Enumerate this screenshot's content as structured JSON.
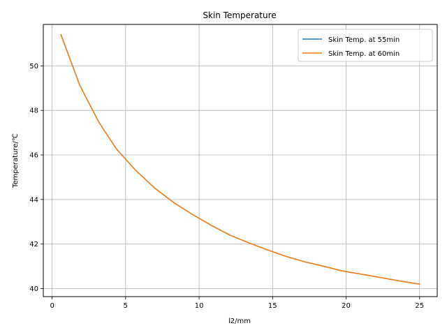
{
  "chart_data": {
    "type": "line",
    "title": "Skin Temperature",
    "xlabel": "l2/mm",
    "ylabel": "Temperature/℃",
    "xlim": [
      -0.6,
      26.2
    ],
    "ylim": [
      39.64,
      51.86
    ],
    "xticks": [
      0,
      5,
      10,
      15,
      20,
      25
    ],
    "yticks": [
      40,
      42,
      44,
      46,
      48,
      50
    ],
    "grid": true,
    "legend_position": "top-right",
    "series": [
      {
        "name": "Skin Temp. at 55min",
        "color": "#1f77b4",
        "x": [
          0.6,
          1.9,
          3.2,
          4.4,
          5.7,
          7.0,
          8.3,
          9.5,
          10.8,
          12.1,
          13.4,
          14.6,
          15.9,
          17.2,
          18.5,
          19.7,
          21.0,
          22.3,
          23.6,
          25.0
        ],
        "y": [
          51.4,
          49.1,
          47.45,
          46.25,
          45.3,
          44.5,
          43.85,
          43.35,
          42.85,
          42.4,
          42.05,
          41.75,
          41.45,
          41.2,
          41.0,
          40.8,
          40.65,
          40.5,
          40.35,
          40.2
        ]
      },
      {
        "name": "Skin Temp. at 60min",
        "color": "#ff7f0e",
        "x": [
          0.6,
          1.9,
          3.2,
          4.4,
          5.7,
          7.0,
          8.3,
          9.5,
          10.8,
          12.1,
          13.4,
          14.6,
          15.9,
          17.2,
          18.5,
          19.7,
          21.0,
          22.3,
          23.6,
          25.0
        ],
        "y": [
          51.4,
          49.1,
          47.45,
          46.25,
          45.3,
          44.5,
          43.85,
          43.35,
          42.85,
          42.4,
          42.05,
          41.75,
          41.45,
          41.2,
          41.0,
          40.8,
          40.65,
          40.5,
          40.35,
          40.2
        ]
      }
    ]
  }
}
